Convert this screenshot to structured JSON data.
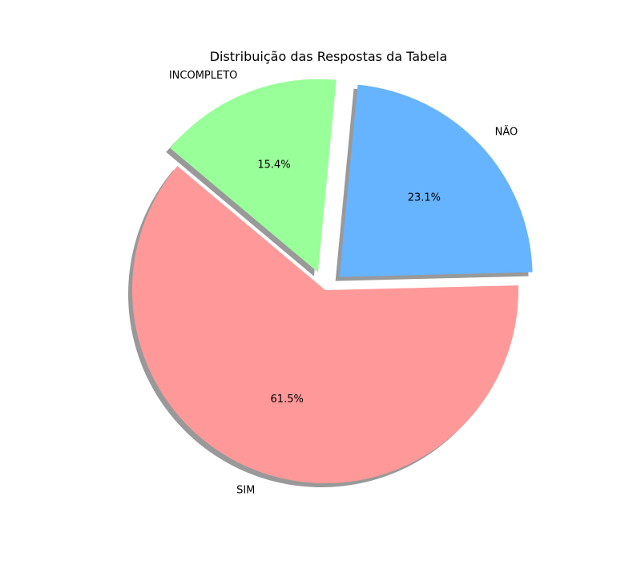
{
  "chart_data": {
    "type": "pie",
    "title": "Distribuição das Respostas da Tabela",
    "slices": [
      {
        "label": "SIM",
        "value": 61.5,
        "pct_label": "61.5%",
        "color": "#ff9999",
        "exploded": false
      },
      {
        "label": "NÃO",
        "value": 23.1,
        "pct_label": "23.1%",
        "color": "#66b3ff",
        "exploded": true
      },
      {
        "label": "INCOMPLETO",
        "value": 15.4,
        "pct_label": "15.4%",
        "color": "#99ff99",
        "exploded": true
      }
    ],
    "start_angle_deg": 140,
    "shadow": true,
    "legend": "none"
  }
}
